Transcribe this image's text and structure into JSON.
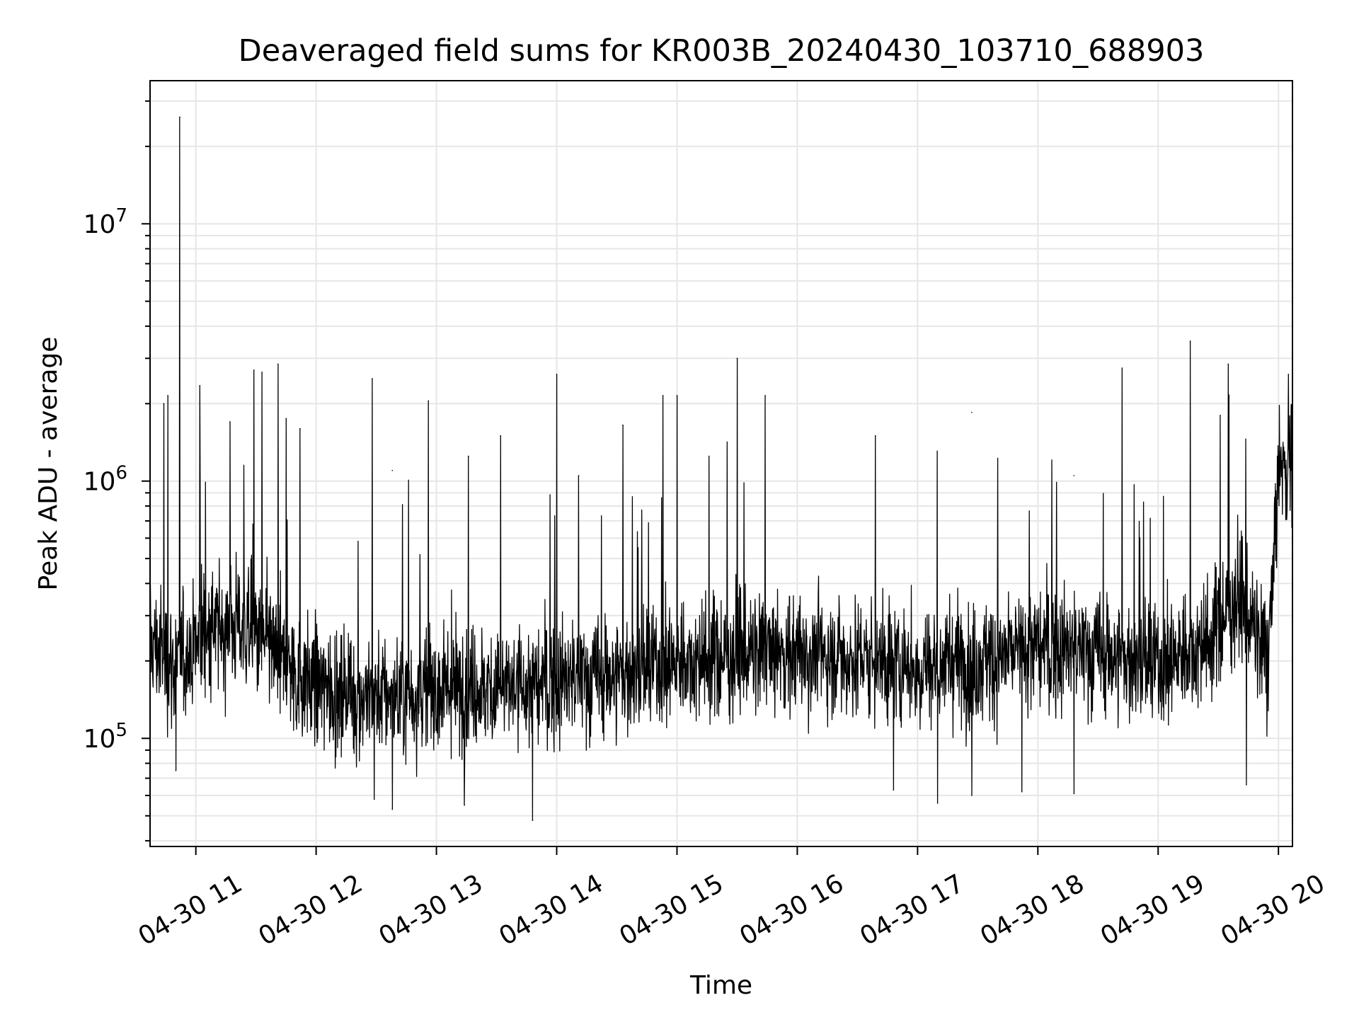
{
  "chart_data": {
    "type": "line",
    "title": "Deaveraged field sums for KR003B_20240430_103710_688903",
    "xlabel": "Time",
    "ylabel": "Peak ADU - average",
    "x_axis": {
      "type": "time",
      "start": "2024-04-30T10:37:10",
      "end": "2024-04-30T20:07:00",
      "ticks": [
        "2024-04-30T11:00",
        "2024-04-30T12:00",
        "2024-04-30T13:00",
        "2024-04-30T14:00",
        "2024-04-30T15:00",
        "2024-04-30T16:00",
        "2024-04-30T17:00",
        "2024-04-30T18:00",
        "2024-04-30T19:00",
        "2024-04-30T20:00"
      ],
      "tick_labels": [
        "04-30 11",
        "04-30 12",
        "04-30 13",
        "04-30 14",
        "04-30 15",
        "04-30 16",
        "04-30 17",
        "04-30 18",
        "04-30 19",
        "04-30 20"
      ]
    },
    "y_axis": {
      "scale": "log",
      "ylim": [
        38000,
        36000000
      ],
      "ticks": [
        100000,
        1000000,
        10000000
      ],
      "tick_labels": [
        {
          "base": "10",
          "exp": "5"
        },
        {
          "base": "10",
          "exp": "6"
        },
        {
          "base": "10",
          "exp": "7"
        }
      ]
    },
    "grid": true,
    "line_color": "#000000",
    "grid_color": "#e6e6e6",
    "series": [
      {
        "name": "",
        "baseline": [
          [
            "2024-04-30T10:37",
            240000
          ],
          [
            "2024-04-30T10:50",
            190000
          ],
          [
            "2024-04-30T11:05",
            260000
          ],
          [
            "2024-04-30T11:20",
            280000
          ],
          [
            "2024-04-30T11:35",
            230000
          ],
          [
            "2024-04-30T11:50",
            175000
          ],
          [
            "2024-04-30T12:10",
            150000
          ],
          [
            "2024-04-30T12:40",
            145000
          ],
          [
            "2024-04-30T13:10",
            160000
          ],
          [
            "2024-04-30T13:40",
            155000
          ],
          [
            "2024-04-30T14:10",
            170000
          ],
          [
            "2024-04-30T14:40",
            180000
          ],
          [
            "2024-04-30T15:00",
            200000
          ],
          [
            "2024-04-30T15:30",
            210000
          ],
          [
            "2024-04-30T16:00",
            215000
          ],
          [
            "2024-04-30T16:30",
            205000
          ],
          [
            "2024-04-30T17:00",
            190000
          ],
          [
            "2024-04-30T17:30",
            200000
          ],
          [
            "2024-04-30T18:00",
            225000
          ],
          [
            "2024-04-30T18:30",
            215000
          ],
          [
            "2024-04-30T19:00",
            190000
          ],
          [
            "2024-04-30T19:25",
            240000
          ],
          [
            "2024-04-30T19:40",
            360000
          ],
          [
            "2024-04-30T19:55",
            200000
          ],
          [
            "2024-04-30T20:00",
            1100000
          ],
          [
            "2024-04-30T20:07",
            1200000
          ]
        ],
        "peaks": [
          [
            "2024-04-30T10:52",
            26000000
          ],
          [
            "2024-04-30T11:02",
            2350000
          ],
          [
            "2024-04-30T10:44",
            2000000
          ],
          [
            "2024-04-30T10:46",
            2150000
          ],
          [
            "2024-04-30T11:17",
            1700000
          ],
          [
            "2024-04-30T11:29",
            2700000
          ],
          [
            "2024-04-30T11:33",
            2650000
          ],
          [
            "2024-04-30T11:41",
            2850000
          ],
          [
            "2024-04-30T11:45",
            1750000
          ],
          [
            "2024-04-30T11:52",
            1600000
          ],
          [
            "2024-04-30T12:28",
            2500000
          ],
          [
            "2024-04-30T12:38",
            1100000
          ],
          [
            "2024-04-30T12:56",
            2050000
          ],
          [
            "2024-04-30T13:16",
            1250000
          ],
          [
            "2024-04-30T13:32",
            1500000
          ],
          [
            "2024-04-30T14:00",
            2600000
          ],
          [
            "2024-04-30T14:11",
            1050000
          ],
          [
            "2024-04-30T14:33",
            1650000
          ],
          [
            "2024-04-30T14:53",
            2150000
          ],
          [
            "2024-04-30T15:00",
            2150000
          ],
          [
            "2024-04-30T15:16",
            1250000
          ],
          [
            "2024-04-30T15:30",
            3000000
          ],
          [
            "2024-04-30T15:44",
            2150000
          ],
          [
            "2024-04-30T16:39",
            1500000
          ],
          [
            "2024-04-30T17:27",
            1850000
          ],
          [
            "2024-04-30T18:18",
            1050000
          ],
          [
            "2024-04-30T18:42",
            2750000
          ],
          [
            "2024-04-30T19:16",
            3500000
          ],
          [
            "2024-04-30T19:31",
            1800000
          ],
          [
            "2024-04-30T19:35",
            2850000
          ],
          [
            "2024-04-30T20:05",
            2600000
          ]
        ],
        "troughs": [
          [
            "2024-04-30T10:50",
            75000
          ],
          [
            "2024-04-30T12:29",
            58000
          ],
          [
            "2024-04-30T12:38",
            53000
          ],
          [
            "2024-04-30T13:14",
            55000
          ],
          [
            "2024-04-30T13:48",
            48000
          ],
          [
            "2024-04-30T16:48",
            63000
          ],
          [
            "2024-04-30T17:10",
            56000
          ],
          [
            "2024-04-30T17:27",
            60000
          ],
          [
            "2024-04-30T17:52",
            62000
          ],
          [
            "2024-04-30T18:18",
            61000
          ],
          [
            "2024-04-30T19:44",
            66000
          ]
        ]
      }
    ]
  }
}
